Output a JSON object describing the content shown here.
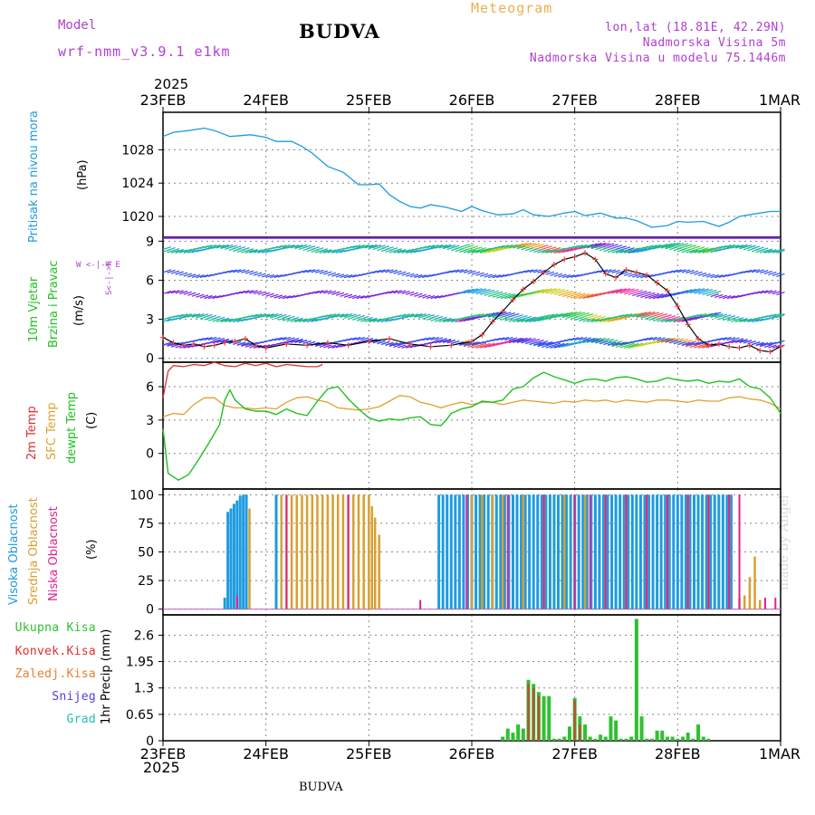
{
  "header": {
    "model_label": "Model",
    "model_run": "wrf-nmm_v3.9.1  e1km",
    "station": "BUDVA",
    "meteogram": "Meteogram",
    "lonlat": "lon,lat (18.81E, 42.29N)",
    "elevation": "Nadmorska Visina 5m",
    "model_elevation": "Nadmorska Visina u modelu 75.1446m",
    "year": "2025",
    "watermark": "made by Angel",
    "footer_station": "BUDVA"
  },
  "colors": {
    "model": "#b040d0",
    "meteogram": "#e8b050",
    "info": "#b040d0",
    "pressure": "#1e9be0",
    "temp2m": "#e03030",
    "sfc": "#e0a030",
    "dewpt": "#20c020",
    "high_cloud": "#1e9be0",
    "mid_cloud": "#d8a030",
    "low_cloud": "#e02090",
    "precip_total": "#30c030",
    "precip_conv": "#e03030",
    "precip_ice": "#e88030",
    "snow": "#5040e0",
    "grad": "#20c0b0",
    "grid": "#888888"
  },
  "labels": {
    "pressure": [
      "Pritisak na nivou mora",
      "(hPa)"
    ],
    "wind": [
      "10m Vjetar",
      "Brzina i Pravac",
      "(m/s)"
    ],
    "compass": "W  <-|->  E",
    "compass_ns": "S<-|->N",
    "temp": [
      "2m Temp",
      "SFC Temp",
      "dewpt Temp",
      "(C)"
    ],
    "cloud": [
      "Visoka Oblacnost",
      "Srednja Oblacnost",
      "Niska  Oblacnost",
      "(%)"
    ],
    "precip_unit": "1hr Precip (mm)",
    "precip_legend": [
      "Ukupna Kisa",
      "Konvek.Kisa",
      "Zaledj.Kisa",
      "Snijeg",
      "Grad"
    ]
  },
  "chart_data": [
    {
      "type": "line",
      "panel": "pressure",
      "x_ticks": [
        "23FEB",
        "24FEB",
        "25FEB",
        "26FEB",
        "27FEB",
        "28FEB",
        "1MAR"
      ],
      "ylim": [
        1017.5,
        1032.5
      ],
      "yticks": [
        1020,
        1024,
        1028
      ],
      "grid": true,
      "series": [
        {
          "x": [
            0,
            0.1,
            0.25,
            0.4,
            0.5,
            0.65,
            0.75,
            0.85,
            1.0,
            1.1,
            1.25,
            1.35,
            1.45,
            1.6,
            1.75,
            1.9,
            2.0,
            2.1,
            2.2,
            2.3,
            2.4,
            2.5,
            2.6,
            2.75,
            2.9,
            3.0,
            3.1,
            3.25,
            3.4,
            3.5,
            3.6,
            3.75,
            3.9,
            4.0,
            4.1,
            4.25,
            4.4,
            4.5,
            4.6,
            4.75,
            4.9,
            5.0,
            5.1,
            5.25,
            5.4,
            5.5,
            5.6,
            5.75,
            5.9,
            6.0
          ],
          "values": [
            1029.6,
            1030.1,
            1030.3,
            1030.6,
            1030.3,
            1029.6,
            1029.7,
            1029.8,
            1029.5,
            1029.0,
            1029.0,
            1028.4,
            1027.6,
            1026.0,
            1025.3,
            1023.8,
            1023.8,
            1023.9,
            1022.6,
            1021.8,
            1021.2,
            1021.0,
            1021.4,
            1021.1,
            1020.6,
            1021.2,
            1020.7,
            1020.2,
            1020.3,
            1020.8,
            1020.2,
            1020.0,
            1020.4,
            1020.6,
            1020.1,
            1020.4,
            1019.8,
            1019.8,
            1019.5,
            1018.7,
            1018.9,
            1019.4,
            1019.3,
            1019.4,
            1018.8,
            1019.3,
            1020.0,
            1020.3,
            1020.6,
            1020.6
          ]
        }
      ]
    },
    {
      "type": "line",
      "panel": "wind",
      "ylim": [
        -0.3,
        9.3
      ],
      "yticks": [
        0,
        3,
        6,
        9
      ],
      "grid": true,
      "series": [
        {
          "name": "",
          "x": [
            0,
            0.1,
            0.2,
            0.3,
            0.4,
            0.5,
            0.6,
            0.7,
            0.8,
            0.9,
            1.0,
            1.2,
            1.4,
            1.6,
            1.8,
            2.0,
            2.2,
            2.4,
            2.6,
            2.8,
            3.0,
            3.1,
            3.2,
            3.3,
            3.4,
            3.5,
            3.6,
            3.7,
            3.8,
            3.9,
            4.0,
            4.1,
            4.2,
            4.3,
            4.4,
            4.5,
            4.6,
            4.7,
            4.8,
            4.9,
            5.0,
            5.1,
            5.2,
            5.3,
            5.4,
            5.5,
            5.6,
            5.7,
            5.8,
            5.9,
            6.0
          ],
          "values": [
            1.6,
            1.2,
            1.0,
            1.1,
            0.9,
            1.0,
            1.2,
            1.3,
            1.5,
            1.0,
            0.8,
            1.1,
            1.0,
            1.2,
            1.0,
            1.3,
            1.5,
            1.1,
            0.9,
            1.0,
            1.3,
            1.8,
            2.8,
            3.6,
            4.5,
            5.3,
            5.9,
            6.6,
            7.2,
            7.6,
            7.8,
            8.1,
            7.6,
            6.5,
            6.2,
            6.8,
            6.6,
            6.4,
            5.8,
            5.2,
            4.0,
            2.6,
            1.5,
            1.0,
            1.1,
            0.9,
            0.8,
            1.0,
            0.6,
            0.5,
            0.9
          ]
        }
      ]
    },
    {
      "type": "line",
      "panel": "temperature",
      "ylim": [
        -3.2,
        8.2
      ],
      "yticks": [
        0,
        3,
        6
      ],
      "grid": true,
      "series": [
        {
          "name": "2m Temp",
          "x": [
            0,
            0.05,
            0.1,
            0.2,
            0.3,
            0.4,
            0.5,
            0.6,
            0.7,
            0.8,
            0.9,
            1.0,
            1.1,
            1.2,
            1.3,
            1.4,
            1.5,
            1.55
          ],
          "values": [
            5.0,
            7.4,
            7.9,
            7.8,
            8.0,
            7.9,
            8.2,
            7.9,
            7.8,
            8.1,
            7.9,
            8.1,
            7.8,
            8.0,
            7.9,
            7.8,
            7.8,
            8.0
          ]
        },
        {
          "name": "SFC Temp",
          "x": [
            0,
            0.1,
            0.2,
            0.3,
            0.4,
            0.5,
            0.6,
            0.7,
            0.8,
            0.9,
            1.0,
            1.1,
            1.2,
            1.3,
            1.4,
            1.5,
            1.6,
            1.7,
            1.8,
            1.9,
            2.0,
            2.1,
            2.2,
            2.3,
            2.4,
            2.5,
            2.6,
            2.7,
            2.8,
            2.9,
            3.0,
            3.1,
            3.2,
            3.3,
            3.4,
            3.5,
            3.6,
            3.7,
            3.8,
            3.9,
            4.0,
            4.1,
            4.2,
            4.3,
            4.4,
            4.5,
            4.6,
            4.7,
            4.8,
            4.9,
            5.0,
            5.1,
            5.2,
            5.3,
            5.4,
            5.5,
            5.6,
            5.7,
            5.8,
            5.9,
            6.0
          ],
          "values": [
            3.3,
            3.6,
            3.5,
            4.4,
            5.0,
            5.0,
            4.3,
            4.1,
            4.1,
            4.0,
            4.1,
            4.0,
            4.6,
            5.0,
            5.1,
            4.8,
            4.6,
            4.1,
            4.0,
            3.9,
            4.0,
            4.2,
            4.7,
            5.2,
            5.1,
            4.6,
            4.4,
            4.1,
            4.4,
            4.6,
            4.4,
            4.6,
            4.6,
            4.4,
            4.6,
            4.8,
            4.7,
            4.6,
            4.5,
            4.7,
            4.6,
            4.8,
            4.7,
            4.8,
            4.6,
            4.8,
            4.7,
            4.6,
            4.8,
            4.8,
            4.7,
            4.6,
            4.8,
            4.7,
            4.7,
            5.0,
            5.1,
            4.9,
            4.8,
            4.5,
            4.0
          ]
        },
        {
          "name": "dewpt Temp",
          "x": [
            0,
            0.05,
            0.15,
            0.25,
            0.35,
            0.45,
            0.55,
            0.6,
            0.65,
            0.7,
            0.8,
            0.9,
            1.0,
            1.1,
            1.2,
            1.3,
            1.4,
            1.5,
            1.6,
            1.7,
            1.8,
            1.9,
            2.0,
            2.1,
            2.2,
            2.3,
            2.4,
            2.5,
            2.6,
            2.7,
            2.75,
            2.8,
            2.9,
            3.0,
            3.1,
            3.2,
            3.3,
            3.4,
            3.5,
            3.6,
            3.7,
            3.8,
            3.9,
            4.0,
            4.1,
            4.2,
            4.3,
            4.4,
            4.5,
            4.6,
            4.7,
            4.8,
            4.9,
            5.0,
            5.1,
            5.2,
            5.3,
            5.4,
            5.5,
            5.6,
            5.7,
            5.8,
            5.9,
            6.0
          ],
          "values": [
            2.2,
            -1.8,
            -2.4,
            -1.9,
            -0.5,
            1.0,
            2.6,
            4.8,
            5.7,
            4.8,
            4.0,
            3.8,
            3.8,
            3.5,
            4.0,
            3.6,
            3.4,
            4.7,
            5.8,
            6.0,
            4.9,
            4.0,
            3.2,
            2.9,
            3.1,
            3.0,
            3.2,
            3.3,
            2.6,
            2.5,
            3.0,
            3.6,
            4.0,
            4.2,
            4.7,
            4.6,
            4.8,
            5.8,
            6.0,
            6.8,
            7.3,
            6.9,
            6.6,
            6.3,
            6.6,
            6.7,
            6.5,
            6.8,
            6.9,
            6.7,
            6.4,
            6.5,
            6.8,
            6.6,
            6.5,
            6.6,
            6.3,
            6.5,
            6.4,
            6.7,
            6.0,
            5.8,
            5.0,
            3.6
          ]
        }
      ]
    },
    {
      "type": "bar",
      "panel": "cloud",
      "ylim": [
        -5,
        105
      ],
      "yticks": [
        0,
        25,
        50,
        75,
        100
      ],
      "grid": true,
      "series": [
        {
          "name": "Visoka Oblacnost",
          "x": [
            0.6,
            0.63,
            0.66,
            0.69,
            0.72,
            0.75,
            0.78,
            0.81,
            1.1,
            2.68,
            2.72,
            2.76,
            2.8,
            2.84,
            2.88,
            2.92,
            2.96,
            3.0,
            3.04,
            3.08,
            3.12,
            3.16,
            3.2,
            3.24,
            3.28,
            3.32,
            3.36,
            3.4,
            3.44,
            3.48,
            3.52,
            3.56,
            3.6,
            3.64,
            3.68,
            3.72,
            3.76,
            3.8,
            3.84,
            3.88,
            3.92,
            3.96,
            4.0,
            4.04,
            4.08,
            4.12,
            4.16,
            4.2,
            4.24,
            4.28,
            4.32,
            4.36,
            4.4,
            4.44,
            4.48,
            4.52,
            4.56,
            4.6,
            4.64,
            4.68,
            4.72,
            4.76,
            4.8,
            4.84,
            4.88,
            4.92,
            4.96,
            5.0,
            5.04,
            5.08,
            5.12,
            5.16,
            5.2,
            5.24,
            5.28,
            5.32,
            5.36,
            5.4,
            5.44,
            5.48,
            5.52
          ],
          "values": [
            10,
            85,
            88,
            92,
            95,
            99,
            100,
            100,
            100,
            100,
            100,
            100,
            100,
            100,
            100,
            100,
            100,
            100,
            100,
            100,
            100,
            100,
            100,
            100,
            100,
            100,
            100,
            100,
            100,
            100,
            100,
            100,
            100,
            100,
            100,
            100,
            100,
            100,
            100,
            100,
            100,
            100,
            100,
            100,
            100,
            100,
            100,
            100,
            100,
            100,
            100,
            100,
            100,
            100,
            100,
            100,
            100,
            100,
            100,
            100,
            100,
            100,
            100,
            100,
            100,
            100,
            100,
            100,
            100,
            100,
            100,
            100,
            100,
            100,
            100,
            100,
            100,
            100,
            100,
            100,
            100
          ]
        },
        {
          "name": "Srednja Oblacnost",
          "x": [
            0.84,
            1.15,
            1.2,
            1.25,
            1.3,
            1.35,
            1.4,
            1.45,
            1.5,
            1.55,
            1.6,
            1.65,
            1.7,
            1.75,
            1.8,
            1.85,
            1.9,
            1.95,
            2.0,
            2.03,
            2.06,
            2.1,
            3.0,
            3.1,
            3.2,
            3.3,
            3.5,
            3.7,
            3.9,
            4.1,
            4.3,
            4.5,
            4.7,
            4.9,
            5.1,
            5.3,
            5.5,
            5.6,
            5.65,
            5.7,
            5.75,
            5.8
          ],
          "values": [
            88,
            100,
            100,
            100,
            100,
            100,
            100,
            100,
            100,
            100,
            100,
            100,
            100,
            100,
            100,
            100,
            100,
            100,
            100,
            90,
            80,
            65,
            100,
            100,
            100,
            100,
            100,
            100,
            100,
            100,
            100,
            100,
            100,
            100,
            100,
            100,
            100,
            10,
            12,
            28,
            46,
            8
          ]
        },
        {
          "name": "Niska Oblacnost",
          "x": [
            0.72,
            1.2,
            1.8,
            2.5,
            2.95,
            3.35,
            3.7,
            4.0,
            4.15,
            4.3,
            4.5,
            4.7,
            4.9,
            5.1,
            5.3,
            5.5,
            5.6,
            5.85,
            5.95
          ],
          "values": [
            12,
            100,
            100,
            8,
            100,
            100,
            100,
            100,
            100,
            100,
            100,
            100,
            100,
            100,
            100,
            100,
            100,
            10,
            10
          ]
        }
      ]
    },
    {
      "type": "bar",
      "panel": "precip",
      "ylim": [
        0,
        3.1
      ],
      "yticks": [
        0,
        0.65,
        1.3,
        1.95,
        2.6
      ],
      "grid": true,
      "series": [
        {
          "name": "Ukupna Kisa",
          "x": [
            3.3,
            3.35,
            3.4,
            3.45,
            3.5,
            3.55,
            3.6,
            3.65,
            3.7,
            3.75,
            3.8,
            3.85,
            3.9,
            3.95,
            4.0,
            4.05,
            4.1,
            4.15,
            4.2,
            4.25,
            4.3,
            4.35,
            4.4,
            4.45,
            4.5,
            4.55,
            4.6,
            4.65,
            4.7,
            4.75,
            4.8,
            4.85,
            4.9,
            4.95,
            5.0,
            5.05,
            5.1,
            5.15,
            5.2,
            5.25,
            5.3
          ],
          "values": [
            0.1,
            0.3,
            0.2,
            0.4,
            0.3,
            1.5,
            1.4,
            1.2,
            1.1,
            1.1,
            0.05,
            0.05,
            0.1,
            0.35,
            1.05,
            0.6,
            0.4,
            0.1,
            0.05,
            0.15,
            0.1,
            0.6,
            0.5,
            0.05,
            0.05,
            0.1,
            3.0,
            0.6,
            0.05,
            0.05,
            0.25,
            0.25,
            0.1,
            0.1,
            0.05,
            0.1,
            0.2,
            0.05,
            0.4,
            0.1,
            0.05
          ]
        },
        {
          "name": "Konvek.Kisa",
          "x": [
            3.55,
            3.6,
            3.65,
            4.0,
            4.05
          ],
          "values": [
            1.4,
            1.3,
            1.1,
            1.0,
            0.4
          ]
        }
      ]
    }
  ]
}
